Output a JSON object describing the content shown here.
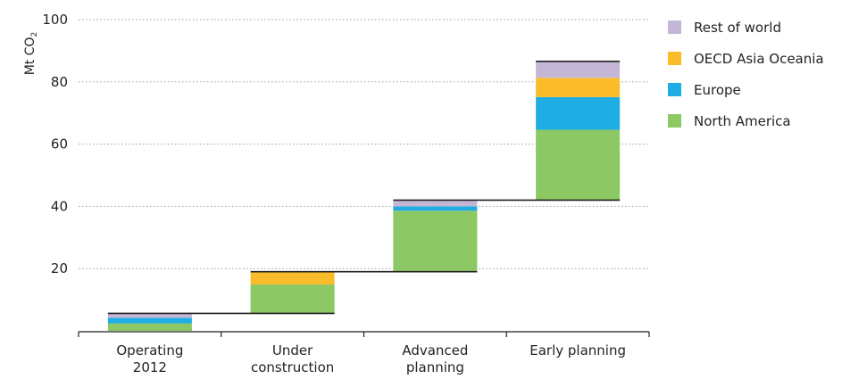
{
  "chart_data": {
    "type": "bar",
    "subtype": "stacked-waterfall",
    "ylabel": "Mt CO",
    "ylabel_subscript": "2",
    "ylim": [
      0,
      100
    ],
    "yticks": [
      "20",
      "40",
      "60",
      "80",
      "100"
    ],
    "grid": true,
    "legend_position": "top-right",
    "categories": [
      {
        "line1": "Operating",
        "line2": "2012"
      },
      {
        "line1": "Under",
        "line2": "construction"
      },
      {
        "line1": "Advanced",
        "line2": "planning"
      },
      {
        "line1": "Early planning",
        "line2": ""
      }
    ],
    "category_base": [
      0,
      5.6,
      19,
      42
    ],
    "series": [
      {
        "name": "North America",
        "color": "#8cc863",
        "values": [
          2.4,
          9.3,
          19.6,
          22.6
        ]
      },
      {
        "name": "Europe",
        "color": "#1fade3",
        "values": [
          1.8,
          0,
          1.4,
          10.5
        ]
      },
      {
        "name": "OECD Asia Oceania",
        "color": "#fbbc2c",
        "values": [
          0,
          4.1,
          0,
          6.2
        ]
      },
      {
        "name": "Rest of world",
        "color": "#c4b7d6",
        "values": [
          1.4,
          0,
          2.0,
          5.3
        ]
      }
    ],
    "totals": [
      5.6,
      19.0,
      42.0,
      86.6
    ]
  }
}
